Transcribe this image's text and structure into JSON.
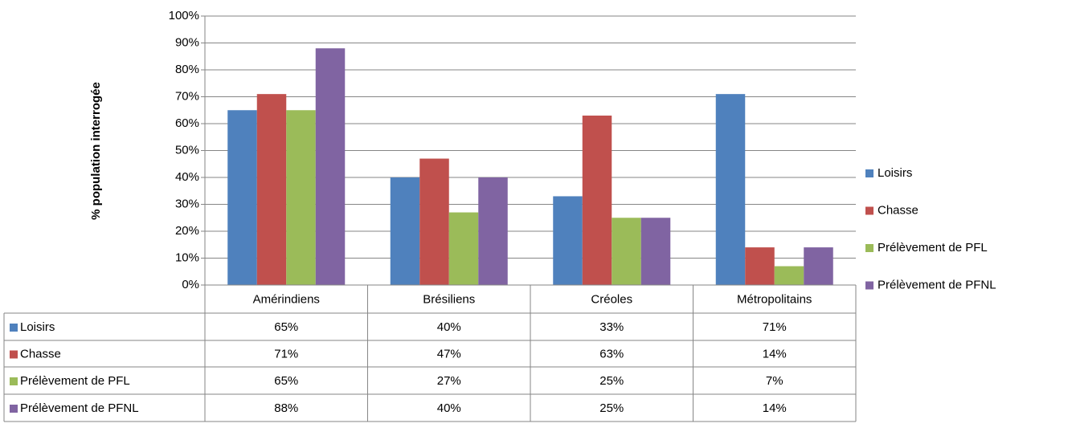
{
  "chart_data": {
    "type": "bar",
    "y_label": "% population interrogée",
    "categories": [
      "Amérindiens",
      "Brésiliens",
      "Créoles",
      "Métropolitains"
    ],
    "series": [
      {
        "name": "Loisirs",
        "color": "#4f81bd",
        "values": [
          65,
          40,
          33,
          71
        ],
        "value_labels": [
          "65%",
          "40%",
          "33%",
          "71%"
        ]
      },
      {
        "name": "Chasse",
        "color": "#c0504d",
        "values": [
          71,
          47,
          63,
          14
        ],
        "value_labels": [
          "71%",
          "47%",
          "63%",
          "14%"
        ]
      },
      {
        "name": "Prélèvement de PFL",
        "color": "#9bbb59",
        "values": [
          65,
          27,
          25,
          7
        ],
        "value_labels": [
          "65%",
          "27%",
          "25%",
          "7%"
        ]
      },
      {
        "name": "Prélèvement de PFNL",
        "color": "#8064a2",
        "values": [
          88,
          40,
          25,
          14
        ],
        "value_labels": [
          "88%",
          "40%",
          "25%",
          "14%"
        ]
      }
    ],
    "ylim": [
      0,
      100
    ],
    "yticks": [
      {
        "value": 0,
        "label": "0%"
      },
      {
        "value": 10,
        "label": "10%"
      },
      {
        "value": 20,
        "label": "20%"
      },
      {
        "value": 30,
        "label": "30%"
      },
      {
        "value": 40,
        "label": "40%"
      },
      {
        "value": 50,
        "label": "50%"
      },
      {
        "value": 60,
        "label": "60%"
      },
      {
        "value": 70,
        "label": "70%"
      },
      {
        "value": 80,
        "label": "80%"
      },
      {
        "value": 90,
        "label": "90%"
      },
      {
        "value": 100,
        "label": "100%"
      }
    ],
    "grid": true,
    "legend": "right"
  }
}
